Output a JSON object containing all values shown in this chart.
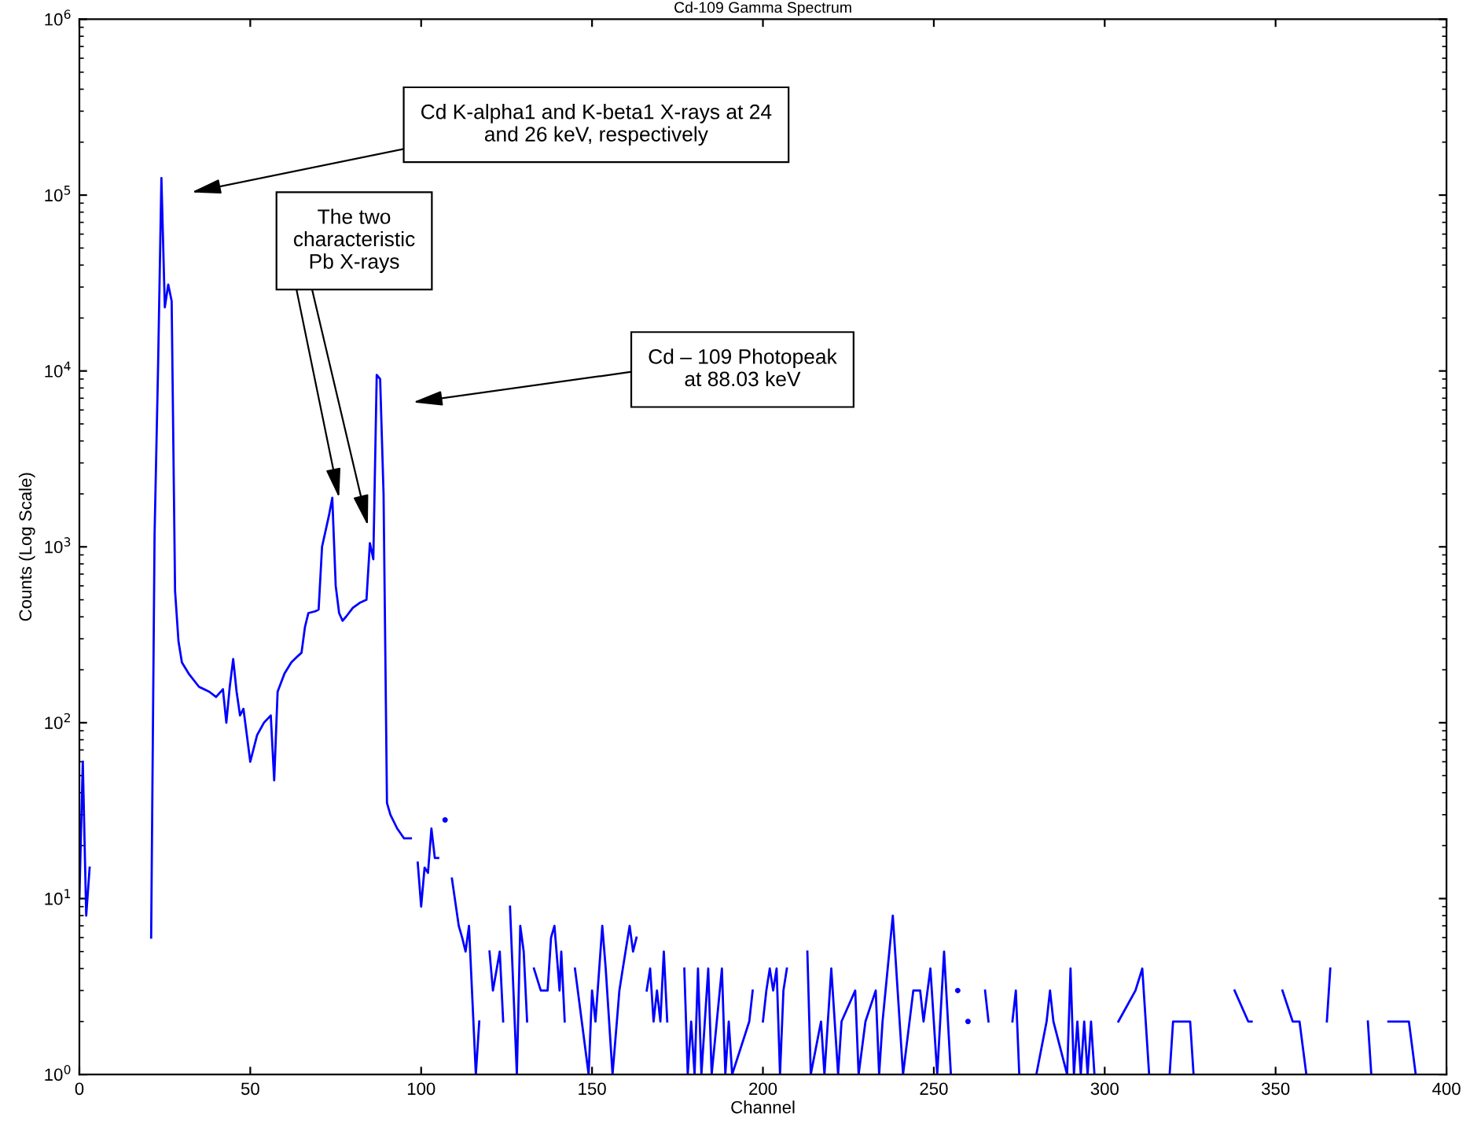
{
  "chart_data": {
    "type": "line",
    "title": "Cd-109 Gamma Spectrum",
    "xlabel": "Channel",
    "ylabel": "Counts (Log Scale)",
    "log": "y",
    "xlim": [
      0,
      400
    ],
    "ylim": [
      1,
      1000000
    ],
    "xticks": [
      0,
      50,
      100,
      150,
      200,
      250,
      300,
      350,
      400
    ],
    "yticks": [
      {
        "value": 1,
        "label": "10$^{0}$"
      },
      {
        "value": 10,
        "label": "10$^{1}$"
      },
      {
        "value": 100,
        "label": "10$^{2}$"
      },
      {
        "value": 1000,
        "label": "10$^{3}$"
      },
      {
        "value": 10000,
        "label": "10$^{4}$"
      },
      {
        "value": 100000,
        "label": "10$^{5}$"
      },
      {
        "value": 1000000,
        "label": "10$^{6}$"
      }
    ],
    "grid": false,
    "series": [
      {
        "color": "#0000ff",
        "x": [
          0,
          1,
          2,
          3,
          4,
          21,
          22,
          23,
          24,
          25,
          26,
          27,
          28,
          29,
          30,
          32,
          35,
          38,
          40,
          42,
          43,
          44,
          45,
          46,
          47,
          48,
          49,
          50,
          52,
          54,
          56,
          57,
          58,
          60,
          62,
          64,
          65,
          66,
          67,
          69,
          70,
          71,
          73,
          74,
          75,
          76,
          77,
          78,
          80,
          82,
          84,
          85,
          86,
          87,
          88,
          89,
          90,
          91,
          93,
          95,
          97,
          98,
          99,
          100,
          101,
          102,
          103,
          104,
          105,
          106,
          107,
          108,
          109,
          111,
          112,
          113,
          114,
          116,
          117,
          119,
          120,
          121,
          123,
          124,
          125,
          126,
          128,
          129,
          130,
          131,
          132,
          133,
          135,
          137,
          138,
          139,
          140,
          140.5,
          141,
          142,
          143,
          145,
          147,
          149,
          150,
          151,
          153,
          154,
          156,
          158,
          159,
          161,
          162,
          163,
          164,
          166,
          167,
          168,
          169,
          170,
          171,
          172,
          173,
          177,
          178,
          179,
          180,
          181,
          182,
          184,
          185,
          188,
          189,
          190,
          191,
          196,
          197,
          198,
          200,
          201,
          202,
          203,
          204,
          205,
          206,
          207,
          208,
          213,
          214,
          217,
          218,
          220,
          222,
          223,
          227,
          228,
          230,
          233,
          234,
          235,
          238,
          240,
          241,
          244,
          246,
          247,
          249,
          251,
          253,
          255,
          256,
          257,
          258,
          260,
          264,
          265,
          266,
          270,
          273,
          274,
          275,
          279,
          280,
          283,
          284,
          285,
          289,
          290,
          291,
          292,
          293,
          294,
          295,
          296,
          297,
          299,
          304,
          309,
          311,
          313,
          314,
          319,
          320,
          325,
          326,
          327,
          338,
          342,
          343,
          344,
          352,
          355,
          357,
          359,
          360,
          365,
          366,
          367,
          377,
          378,
          380,
          383,
          389,
          391
        ],
        "values": [
          10,
          60,
          8,
          15,
          null,
          6,
          1170,
          10000,
          125000,
          23000,
          31000,
          25000,
          560,
          290,
          220,
          190,
          160,
          150,
          140,
          155,
          100,
          160,
          230,
          150,
          110,
          120,
          85,
          60,
          85,
          100,
          110,
          47,
          150,
          190,
          220,
          240,
          250,
          350,
          420,
          430,
          440,
          1000,
          1500,
          1900,
          600,
          420,
          380,
          400,
          450,
          480,
          500,
          1050,
          850,
          9500,
          9000,
          2000,
          35,
          30,
          25,
          22,
          22,
          null,
          16,
          9,
          15,
          14,
          25,
          17,
          17,
          null,
          28,
          null,
          13,
          7,
          6,
          5,
          7,
          1,
          2,
          null,
          5,
          3,
          5,
          2,
          null,
          9,
          1,
          7,
          5,
          2,
          null,
          4,
          3,
          3,
          6,
          7,
          4,
          3,
          5,
          2,
          null,
          4,
          2,
          1,
          3,
          2,
          7,
          4,
          1,
          3,
          4,
          7,
          5,
          6,
          null,
          3,
          4,
          2,
          3,
          2,
          5,
          2,
          null,
          4,
          1,
          2,
          1,
          4,
          1,
          4,
          1,
          4,
          1,
          2,
          1,
          2,
          3,
          null,
          2,
          3,
          4,
          3,
          4,
          1,
          3,
          4,
          null,
          5,
          1,
          2,
          1,
          4,
          1,
          2,
          3,
          1,
          2,
          3,
          1,
          2,
          8,
          2,
          1,
          3,
          3,
          2,
          4,
          1,
          5,
          1,
          null,
          3,
          null,
          2,
          null,
          3,
          2,
          null,
          2,
          3,
          1,
          null,
          1,
          2,
          3,
          2,
          1,
          4,
          1,
          2,
          1,
          2,
          1,
          2,
          1,
          null,
          2,
          3,
          4,
          1,
          null,
          1,
          2,
          2,
          1,
          null,
          3,
          2,
          2,
          null,
          3,
          2,
          2,
          1,
          null,
          2,
          4,
          null,
          2,
          1,
          null,
          2,
          2,
          1
        ]
      }
    ],
    "annotations": [
      "Cd K-alpha1 and K-beta1 X-rays at 24\nand 26 keV, respectively",
      {
        "text": "The two\ncharacteristic\nPb X-rays",
        "x": 76,
        "y": 1900
      },
      "Cd – 109 Photopeak\nat 88.03 keV"
    ]
  }
}
